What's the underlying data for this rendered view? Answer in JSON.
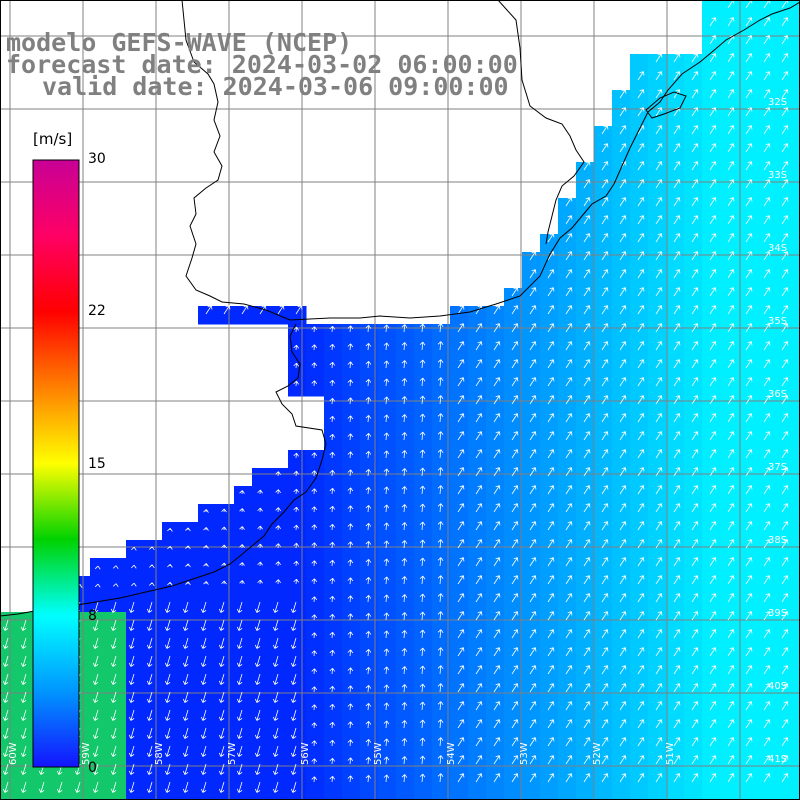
{
  "titles": {
    "line1": "modelo GEFS-WAVE (NCEP)",
    "line2": "forecast date: 2024-03-02 06:00:00",
    "line3": "valid date: 2024-03-06 09:00:00"
  },
  "colorbar": {
    "units": "[m/s]",
    "ticks": [
      "30",
      "22",
      "15",
      "8",
      "0"
    ],
    "colors": [
      "#1414ff",
      "#0096ff",
      "#00ffff",
      "#00d200",
      "#ffff00",
      "#ff8000",
      "#ff0000",
      "#ff0064",
      "#c80096"
    ]
  },
  "latitude_labels": [
    "32S",
    "33S",
    "34S",
    "35S",
    "36S",
    "37S",
    "38S",
    "39S",
    "40S",
    "41S"
  ],
  "longitude_labels": [
    "60W",
    "59W",
    "58W",
    "57W",
    "56W",
    "55W",
    "54W",
    "53W",
    "52W",
    "51W"
  ],
  "colors": {
    "land": "#ffffff",
    "coastline": "#000000",
    "grid": "#808080",
    "arrow": "#ffffff",
    "title_text": "#808080"
  }
}
